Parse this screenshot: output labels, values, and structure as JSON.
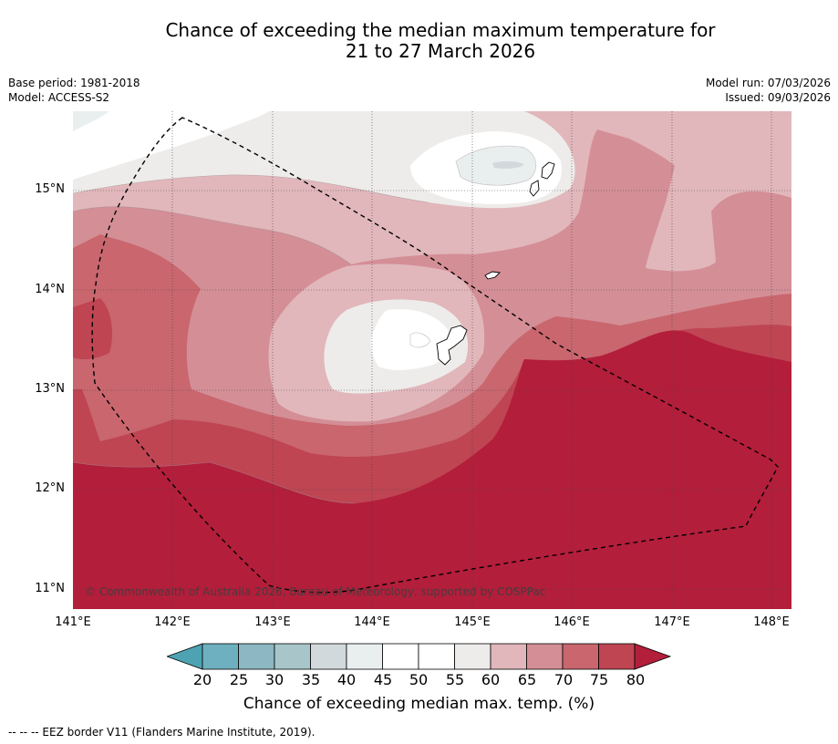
{
  "title_line1": "Chance of exceeding the median maximum temperature for",
  "title_line2": "21 to 27 March 2026",
  "meta": {
    "base_period": "Base period: 1981-2018",
    "model": "Model: ACCESS-S2",
    "model_run": "Model run: 07/03/2026",
    "issued": "Issued: 09/03/2026"
  },
  "copyright": "© Commonwealth of Australia 2026, Bureau of Meteorology, supported by COSPPac",
  "lat_labels": [
    "15°N",
    "14°N",
    "13°N",
    "12°N",
    "11°N"
  ],
  "lon_labels": [
    "141°E",
    "142°E",
    "143°E",
    "144°E",
    "145°E",
    "146°E",
    "147°E",
    "148°E"
  ],
  "colorbar": {
    "ticks": [
      "20",
      "25",
      "30",
      "35",
      "40",
      "45",
      "50",
      "55",
      "60",
      "65",
      "70",
      "75",
      "80"
    ],
    "label": "Chance of exceeding median max. temp. (%)",
    "colors": [
      "#4ea3b2",
      "#6eb0bf",
      "#8cb7c3",
      "#a8c6ca",
      "#d1d9dc",
      "#e9efef",
      "#ffffff",
      "#ffffff",
      "#eeecea",
      "#e1b7bb",
      "#d48e96",
      "#c9666e",
      "#bf4553",
      "#b31e3b"
    ]
  },
  "footnote": "--  --  -- EEZ border V11 (Flanders Marine Institute, 2019).",
  "map_data": {
    "lon_range": [
      141.0,
      148.2
    ],
    "lat_range": [
      10.8,
      15.8
    ],
    "gridlines": true
  }
}
